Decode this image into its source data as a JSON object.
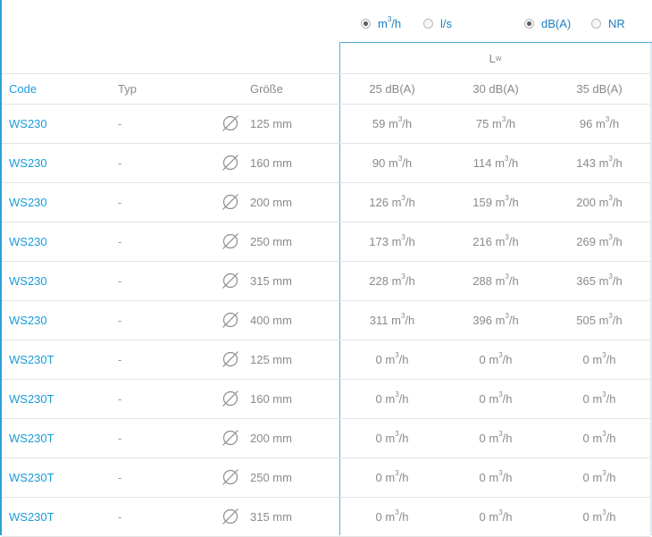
{
  "units": {
    "flow_options": [
      {
        "label": "m³/h",
        "selected": true
      },
      {
        "label": "l/s",
        "selected": false
      }
    ],
    "level_options": [
      {
        "label": "dB(A)",
        "selected": true
      },
      {
        "label": "NR",
        "selected": false
      }
    ]
  },
  "group_header": {
    "label": "L",
    "sub": "w"
  },
  "columns": {
    "code": "Code",
    "typ": "Typ",
    "size": "Größe",
    "levels": [
      "25 dB(A)",
      "30 dB(A)",
      "35 dB(A)"
    ]
  },
  "unit_suffix": "m³/h",
  "rows": [
    {
      "code": "WS230",
      "typ": "-",
      "size": "125 mm",
      "values": [
        "59",
        "75",
        "96"
      ]
    },
    {
      "code": "WS230",
      "typ": "-",
      "size": "160 mm",
      "values": [
        "90",
        "114",
        "143"
      ]
    },
    {
      "code": "WS230",
      "typ": "-",
      "size": "200 mm",
      "values": [
        "126",
        "159",
        "200"
      ]
    },
    {
      "code": "WS230",
      "typ": "-",
      "size": "250 mm",
      "values": [
        "173",
        "216",
        "269"
      ]
    },
    {
      "code": "WS230",
      "typ": "-",
      "size": "315 mm",
      "values": [
        "228",
        "288",
        "365"
      ]
    },
    {
      "code": "WS230",
      "typ": "-",
      "size": "400 mm",
      "values": [
        "311",
        "396",
        "505"
      ]
    },
    {
      "code": "WS230T",
      "typ": "-",
      "size": "125 mm",
      "values": [
        "0",
        "0",
        "0"
      ]
    },
    {
      "code": "WS230T",
      "typ": "-",
      "size": "160 mm",
      "values": [
        "0",
        "0",
        "0"
      ]
    },
    {
      "code": "WS230T",
      "typ": "-",
      "size": "200 mm",
      "values": [
        "0",
        "0",
        "0"
      ]
    },
    {
      "code": "WS230T",
      "typ": "-",
      "size": "250 mm",
      "values": [
        "0",
        "0",
        "0"
      ]
    },
    {
      "code": "WS230T",
      "typ": "-",
      "size": "315 mm",
      "values": [
        "0",
        "0",
        "0"
      ]
    }
  ],
  "icons": {
    "diameter": "diameter-icon"
  }
}
